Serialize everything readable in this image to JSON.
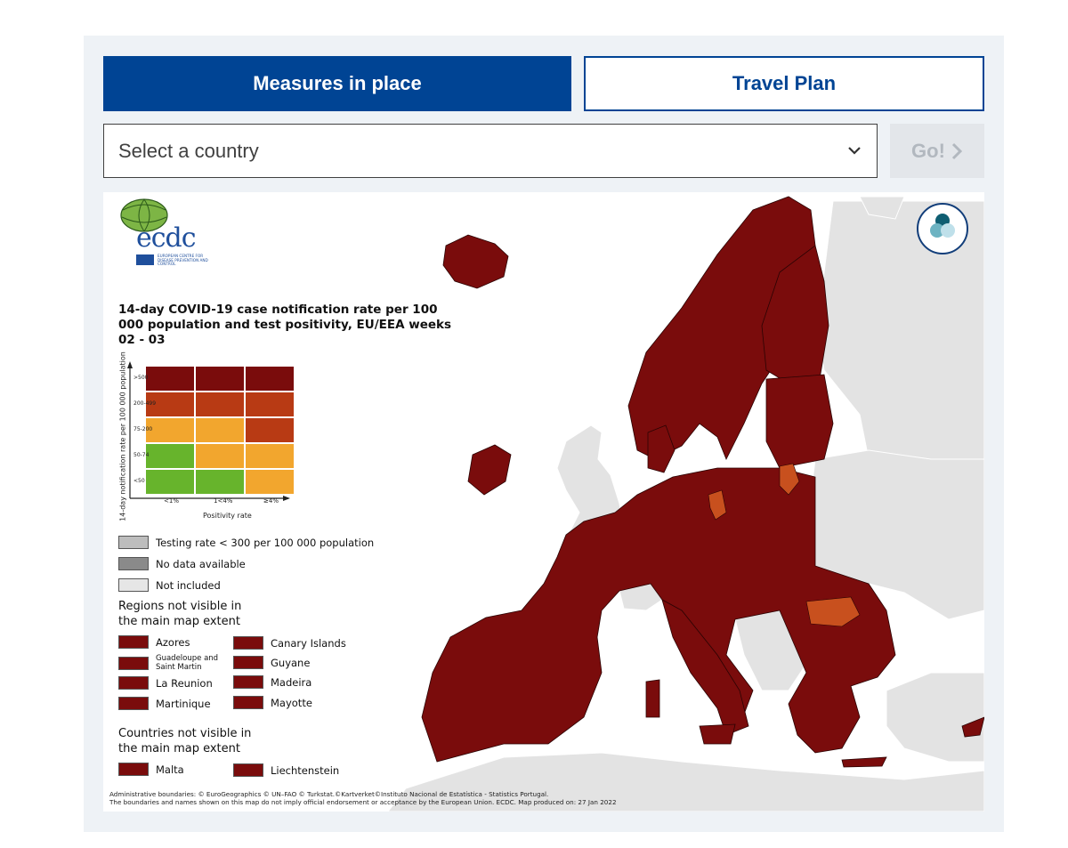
{
  "tabs": {
    "measures": "Measures in place",
    "travel": "Travel Plan"
  },
  "selector": {
    "value": "Select a country",
    "go_label": "Go!"
  },
  "map": {
    "title": "14-day COVID-19 case notification rate per 100 000 population and test positivity, EU/EEA weeks 02 - 03",
    "y_axis_title": "14-day notification rate per 100 000 population",
    "row_labels": [
      ">500",
      "200-499",
      "75-200",
      "50-74",
      "<50"
    ],
    "col_labels": [
      "<1%",
      "1<4%",
      "≥4%"
    ],
    "x_axis_title": "Positivity rate",
    "matrix_colors": [
      [
        "#7a0c0c",
        "#7a0c0c",
        "#7a0c0c"
      ],
      [
        "#b83a14",
        "#b83a14",
        "#b83a14"
      ],
      [
        "#f2a62e",
        "#f2a62e",
        "#b83a14"
      ],
      [
        "#67b42c",
        "#f2a62e",
        "#f2a62e"
      ],
      [
        "#67b42c",
        "#67b42c",
        "#f2a62e"
      ]
    ],
    "legend_items": [
      {
        "label": "Testing rate < 300 per 100 000 population",
        "color": "#bdbdbd"
      },
      {
        "label": "No data available",
        "color": "#8a8a8a"
      },
      {
        "label": "Not included",
        "color": "#e6e6e6"
      }
    ],
    "regions_heading": "Regions not visible in the main map extent",
    "regions": [
      "Azores",
      "Canary Islands",
      "Guadeloupe and Saint Martin",
      "Guyane",
      "La Reunion",
      "Madeira",
      "Martinique",
      "Mayotte"
    ],
    "countries_heading": "Countries not visible in the main map extent",
    "countries": [
      "Malta",
      "Liechtenstein"
    ],
    "credit_line1": "Administrative boundaries: © EuroGeographics © UN–FAO © Turkstat.©Kartverket©Instituto Nacional de Estatística - Statistics Portugal.",
    "credit_line2": "The boundaries and names shown on this map do not imply official endorsement or acceptance by the European Union. ECDC. Map produced on: 27 Jan 2022",
    "logo_text": "ecdc",
    "logo_subtext": "EUROPEAN CENTRE FOR DISEASE PREVENTION AND CONTROL",
    "colors": {
      "dark_red": "#7a0c0c",
      "orange": "#c8501e",
      "not_included": "#e3e3e3",
      "accent": "#004494"
    }
  }
}
